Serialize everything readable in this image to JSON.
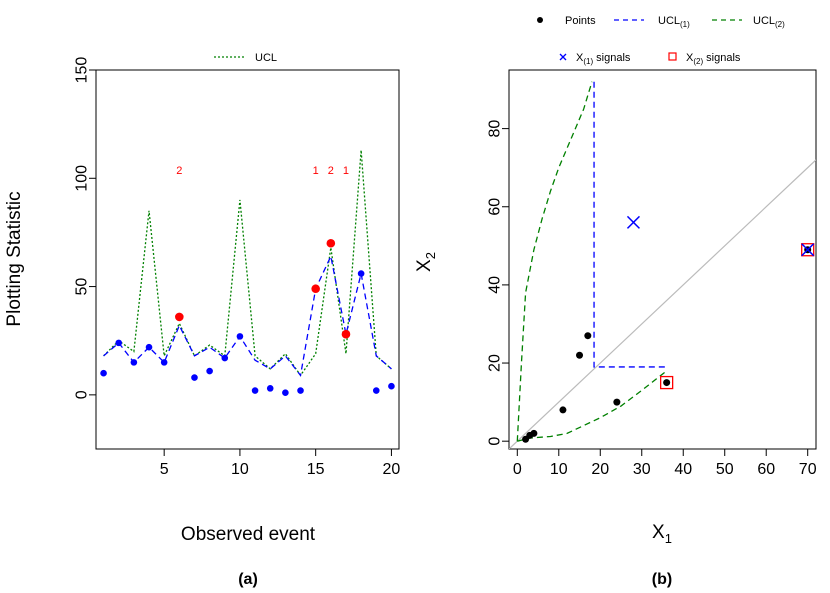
{
  "chart_data": [
    {
      "type": "line",
      "panel_label": "(a)",
      "xlabel": "Observed event",
      "ylabel": "Plotting Statistic",
      "xlim": [
        0.5,
        20.5
      ],
      "ylim": [
        -25,
        150
      ],
      "xticks": [
        5,
        10,
        15,
        20
      ],
      "yticks": [
        0,
        50,
        100,
        150
      ],
      "legend": {
        "position": "top",
        "entries": [
          {
            "label": "UCL",
            "color": "#008000",
            "style": "dotted"
          }
        ]
      },
      "x": [
        1,
        2,
        3,
        4,
        5,
        6,
        7,
        8,
        9,
        10,
        11,
        12,
        13,
        14,
        15,
        16,
        17,
        18,
        19,
        20
      ],
      "series": [
        {
          "name": "Plotting statistic",
          "color": "#0000ff",
          "style": "points",
          "values": [
            10,
            24,
            15,
            22,
            15,
            36,
            8,
            11,
            17,
            27,
            2,
            3,
            1,
            2,
            49,
            70,
            28,
            56,
            2,
            4
          ]
        },
        {
          "name": "UCL1",
          "color": "#0000ff",
          "style": "dashed",
          "values": [
            18,
            24,
            15,
            22,
            15,
            32,
            18,
            22,
            17,
            27,
            16,
            12,
            18,
            9,
            49,
            64,
            28,
            56,
            18,
            12
          ]
        },
        {
          "name": "UCL",
          "color": "#008000",
          "style": "dotted",
          "values": [
            18,
            25,
            20,
            85,
            18,
            33,
            18,
            23,
            18,
            90,
            18,
            12,
            19,
            9,
            19,
            68,
            19,
            113,
            18,
            12
          ]
        }
      ],
      "signal_points": [
        {
          "x": 6,
          "y": 36
        },
        {
          "x": 15,
          "y": 49
        },
        {
          "x": 16,
          "y": 70
        },
        {
          "x": 17,
          "y": 28
        }
      ],
      "signal_color": "#ff0000",
      "annotations": [
        {
          "x": 6,
          "y": 102,
          "text": "2"
        },
        {
          "x": 15,
          "y": 102,
          "text": "1"
        },
        {
          "x": 16,
          "y": 102,
          "text": "2"
        },
        {
          "x": 17,
          "y": 102,
          "text": "1"
        }
      ]
    },
    {
      "type": "scatter",
      "panel_label": "(b)",
      "xlabel_main": "X",
      "xlabel_sub": "1",
      "ylabel_main": "X",
      "ylabel_sub": "2",
      "xlim": [
        -2,
        72
      ],
      "ylim": [
        -2,
        95
      ],
      "xticks": [
        0,
        10,
        20,
        30,
        40,
        50,
        60,
        70
      ],
      "yticks": [
        0,
        20,
        40,
        60,
        80
      ],
      "legend": {
        "position": "top",
        "entries": [
          {
            "label": "Points",
            "sub": "",
            "suffix": "",
            "color": "#000000",
            "style": "point"
          },
          {
            "label": "UCL",
            "sub": "(1)",
            "suffix": "",
            "color": "#0000ff",
            "style": "dashed"
          },
          {
            "label": "UCL",
            "sub": "(2)",
            "suffix": "",
            "color": "#008000",
            "style": "dashed"
          },
          {
            "label": "X",
            "sub": "(1)",
            "suffix": " signals",
            "color": "#0000ff",
            "style": "x"
          },
          {
            "label": "X",
            "sub": "(2)",
            "suffix": " signals",
            "color": "#ff0000",
            "style": "square"
          }
        ]
      },
      "points": [
        {
          "x": 2,
          "y": 0.5
        },
        {
          "x": 3,
          "y": 1.5
        },
        {
          "x": 4,
          "y": 2
        },
        {
          "x": 11,
          "y": 8
        },
        {
          "x": 15,
          "y": 22
        },
        {
          "x": 17,
          "y": 27
        },
        {
          "x": 24,
          "y": 10
        },
        {
          "x": 36,
          "y": 15
        },
        {
          "x": 70,
          "y": 49
        }
      ],
      "x1_signals": [
        {
          "x": 28,
          "y": 56
        },
        {
          "x": 70,
          "y": 49
        }
      ],
      "x2_signals": [
        {
          "x": 36,
          "y": 15
        },
        {
          "x": 70,
          "y": 49
        }
      ],
      "reference_line": {
        "slope": 1,
        "intercept": 0,
        "color": "#bbbbbb"
      },
      "ucl1": {
        "color": "#0000ff",
        "points": [
          [
            18.5,
            92
          ],
          [
            18.5,
            19
          ],
          [
            36,
            19
          ]
        ]
      },
      "ucl2": {
        "color": "#008000",
        "curve_upper": [
          [
            0,
            0
          ],
          [
            1,
            20
          ],
          [
            2,
            38
          ],
          [
            4,
            49
          ],
          [
            6,
            57
          ],
          [
            8,
            64
          ],
          [
            10,
            70
          ],
          [
            12,
            75
          ],
          [
            14,
            80
          ],
          [
            16,
            85
          ],
          [
            18,
            92
          ]
        ],
        "curve_lower": [
          [
            0,
            0
          ],
          [
            3,
            0.8
          ],
          [
            8,
            1.2
          ],
          [
            12,
            2
          ],
          [
            16,
            4
          ],
          [
            20,
            6
          ],
          [
            25,
            9
          ],
          [
            30,
            13
          ],
          [
            36,
            18
          ]
        ]
      }
    }
  ]
}
